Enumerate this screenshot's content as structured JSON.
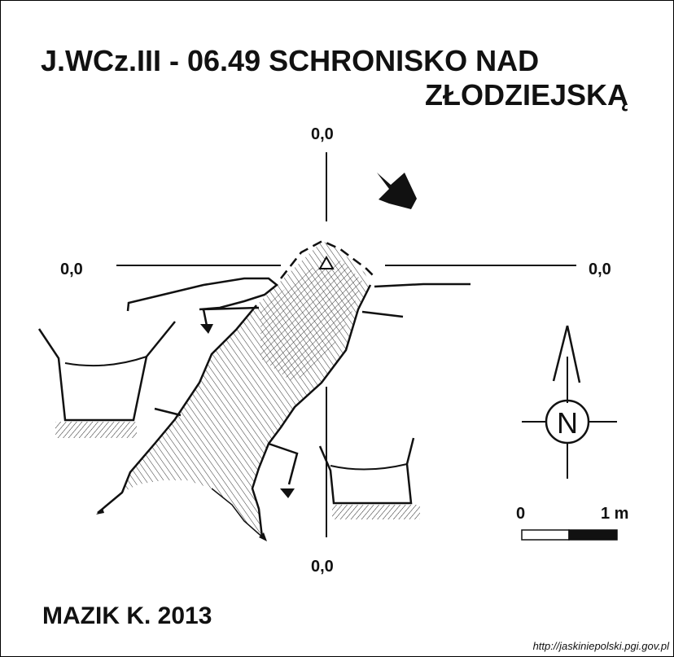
{
  "title": {
    "line1": "J.WCz.III - 06.49  SCHRONISKO NAD",
    "line2": "ZŁODZIEJSKĄ"
  },
  "axis_labels": {
    "top": "0,0",
    "left": "0,0",
    "right": "0,0",
    "bottom": "0,0"
  },
  "north_label": "N",
  "scale": {
    "start": "0",
    "end": "1 m"
  },
  "author": "MAZIK K. 2013",
  "source_url": "http://jaskiniepolski.pgi.gov.pl",
  "colors": {
    "ink": "#111111",
    "background": "#ffffff"
  }
}
